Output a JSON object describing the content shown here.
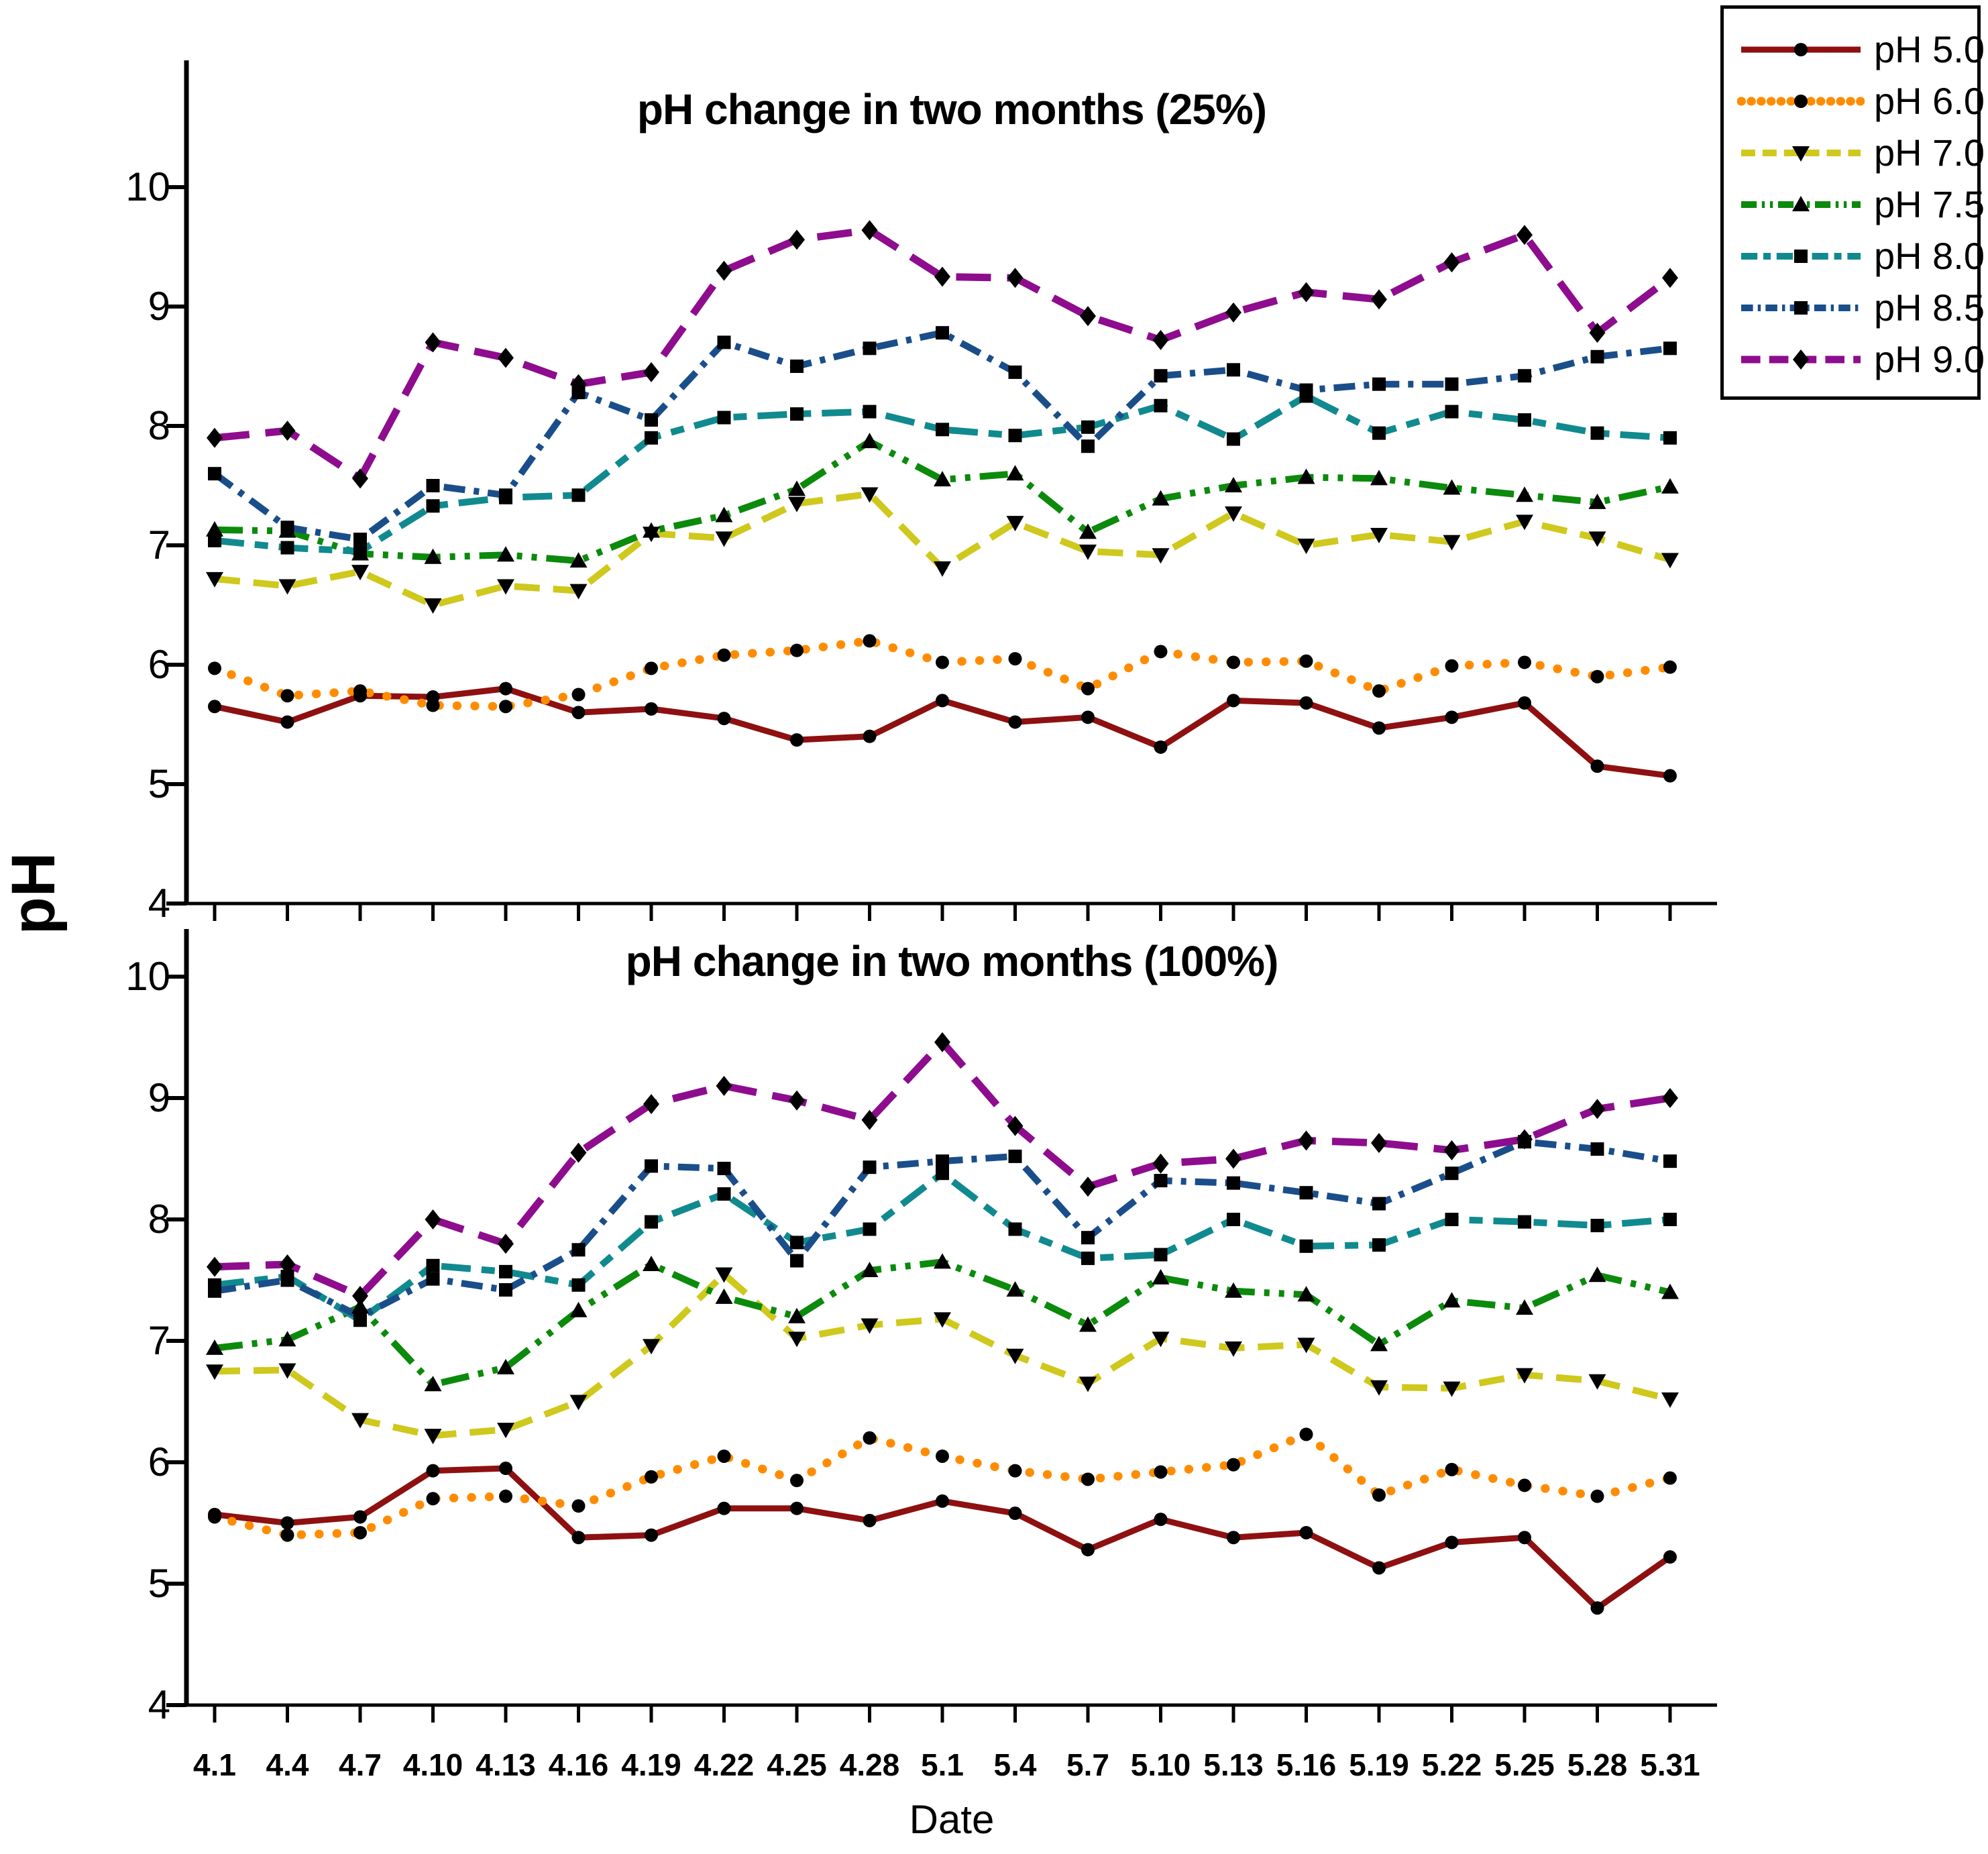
{
  "page_title": "pH change in two months",
  "axes": {
    "y_label": "pH",
    "x_label": "Date",
    "y_ticks": [
      10,
      9,
      8,
      7,
      6,
      5,
      4
    ],
    "ylim": [
      4,
      10
    ]
  },
  "legend": {
    "position": "top-right",
    "items": [
      {
        "label": "pH 5.0",
        "color": "#8e1010",
        "dash": "",
        "width": 9,
        "cap": "butt",
        "marker": "circle"
      },
      {
        "label": "pH 6.0",
        "color": "#ff8c00",
        "dash": "0.5 26",
        "width": 13,
        "cap": "round",
        "marker": "circle"
      },
      {
        "label": "pH 7.0",
        "color": "#cfc81d",
        "dash": "38 20",
        "width": 10,
        "cap": "butt",
        "marker": "triangle-down"
      },
      {
        "label": "pH 7.5",
        "color": "#0b8a0b",
        "dash": "42 14 8 14 8 14",
        "width": 10,
        "cap": "butt",
        "marker": "triangle-up"
      },
      {
        "label": "pH 8.0",
        "color": "#108a8f",
        "dash": "44 16 20 16",
        "width": 10,
        "cap": "butt",
        "marker": "square"
      },
      {
        "label": "pH 8.5",
        "color": "#1a4e8a",
        "dash": "32 13 8 13",
        "width": 10,
        "cap": "butt",
        "marker": "square"
      },
      {
        "label": "pH 9.0",
        "color": "#8e0c8e",
        "dash": "52 24",
        "width": 11,
        "cap": "butt",
        "marker": "diamond"
      }
    ]
  },
  "chart_data": [
    {
      "type": "line",
      "title": "pH change in two months (25%)",
      "xlabel": "Date",
      "ylabel": "pH",
      "ylim": [
        4,
        10
      ],
      "grid": false,
      "categories": [
        "4.1",
        "4.4",
        "4.7",
        "4.10",
        "4.13",
        "4.16",
        "4.19",
        "4.22",
        "4.25",
        "4.28",
        "5.1",
        "5.4",
        "5.7",
        "5.10",
        "5.13",
        "5.16",
        "5.19",
        "5.22",
        "5.25",
        "5.28",
        "5.31"
      ],
      "series": [
        {
          "name": "pH 5.0",
          "values": [
            5.65,
            5.52,
            5.74,
            5.73,
            5.8,
            5.6,
            5.63,
            5.55,
            5.37,
            5.4,
            5.7,
            5.52,
            5.56,
            5.31,
            5.7,
            5.68,
            5.47,
            5.56,
            5.68,
            5.15,
            5.07
          ]
        },
        {
          "name": "pH 6.0",
          "values": [
            5.97,
            5.74,
            5.78,
            5.66,
            5.65,
            5.75,
            5.97,
            6.08,
            6.12,
            6.2,
            6.02,
            6.05,
            5.8,
            6.11,
            6.02,
            6.03,
            5.78,
            5.99,
            6.02,
            5.9,
            5.98
          ]
        },
        {
          "name": "pH 7.0",
          "values": [
            6.72,
            6.66,
            6.78,
            6.5,
            6.66,
            6.62,
            7.1,
            7.06,
            7.35,
            7.43,
            6.81,
            7.19,
            6.95,
            6.92,
            7.27,
            7.0,
            7.09,
            7.03,
            7.2,
            7.06,
            6.88
          ]
        },
        {
          "name": "pH 7.5",
          "values": [
            7.13,
            7.12,
            6.93,
            6.9,
            6.92,
            6.87,
            7.12,
            7.25,
            7.47,
            7.87,
            7.55,
            7.6,
            7.11,
            7.39,
            7.5,
            7.57,
            7.56,
            7.48,
            7.42,
            7.36,
            7.49
          ]
        },
        {
          "name": "pH 8.0",
          "values": [
            7.04,
            6.98,
            6.95,
            7.33,
            7.4,
            7.42,
            7.9,
            8.07,
            8.1,
            8.12,
            7.97,
            7.92,
            7.99,
            8.17,
            7.89,
            8.25,
            7.94,
            8.12,
            8.05,
            7.94,
            7.9
          ]
        },
        {
          "name": "pH 8.5",
          "values": [
            7.6,
            7.15,
            7.05,
            7.5,
            7.42,
            8.28,
            8.05,
            8.7,
            8.5,
            8.65,
            8.78,
            8.45,
            7.83,
            8.42,
            8.47,
            8.3,
            8.35,
            8.35,
            8.42,
            8.58,
            8.65
          ]
        },
        {
          "name": "pH 9.0",
          "values": [
            7.9,
            7.96,
            7.56,
            8.7,
            8.57,
            8.35,
            8.45,
            9.3,
            9.56,
            9.64,
            9.25,
            9.24,
            8.92,
            8.72,
            8.95,
            9.12,
            9.06,
            9.37,
            9.6,
            8.78,
            9.24
          ]
        }
      ]
    },
    {
      "type": "line",
      "title": "pH change in two months (100%)",
      "xlabel": "Date",
      "ylabel": "pH",
      "ylim": [
        4,
        10
      ],
      "grid": false,
      "categories": [
        "4.1",
        "4.4",
        "4.7",
        "4.10",
        "4.13",
        "4.16",
        "4.19",
        "4.22",
        "4.25",
        "4.28",
        "5.1",
        "5.4",
        "5.7",
        "5.10",
        "5.13",
        "5.16",
        "5.19",
        "5.22",
        "5.25",
        "5.28",
        "5.31"
      ],
      "series": [
        {
          "name": "pH 5.0",
          "values": [
            5.57,
            5.5,
            5.55,
            5.93,
            5.95,
            5.38,
            5.4,
            5.62,
            5.62,
            5.52,
            5.68,
            5.58,
            5.28,
            5.53,
            5.38,
            5.42,
            5.13,
            5.34,
            5.38,
            4.8,
            5.22
          ]
        },
        {
          "name": "pH 6.0",
          "values": [
            5.55,
            5.4,
            5.42,
            5.7,
            5.72,
            5.64,
            5.88,
            6.05,
            5.85,
            6.2,
            6.05,
            5.93,
            5.86,
            5.92,
            5.98,
            6.23,
            5.73,
            5.94,
            5.81,
            5.72,
            5.87
          ]
        },
        {
          "name": "pH 7.0",
          "values": [
            6.75,
            6.76,
            6.35,
            6.22,
            6.27,
            6.5,
            6.96,
            7.55,
            7.02,
            7.13,
            7.18,
            6.88,
            6.65,
            7.02,
            6.94,
            6.97,
            6.62,
            6.61,
            6.72,
            6.67,
            6.52
          ]
        },
        {
          "name": "pH 7.5",
          "values": [
            6.94,
            7.01,
            7.28,
            6.64,
            6.78,
            7.25,
            7.63,
            7.36,
            7.2,
            7.58,
            7.65,
            7.42,
            7.13,
            7.52,
            7.41,
            7.38,
            6.97,
            7.33,
            7.27,
            7.54,
            7.4
          ]
        },
        {
          "name": "pH 8.0",
          "values": [
            7.46,
            7.53,
            7.17,
            7.62,
            7.57,
            7.46,
            7.98,
            8.21,
            7.81,
            7.92,
            8.38,
            7.92,
            7.68,
            7.71,
            8.0,
            7.78,
            7.79,
            8.0,
            7.98,
            7.95,
            8.0
          ]
        },
        {
          "name": "pH 8.5",
          "values": [
            7.41,
            7.5,
            7.2,
            7.51,
            7.42,
            7.75,
            8.44,
            8.42,
            7.66,
            8.43,
            8.48,
            8.52,
            7.85,
            8.32,
            8.3,
            8.22,
            8.13,
            8.38,
            8.64,
            8.58,
            8.48
          ]
        },
        {
          "name": "pH 9.0",
          "values": [
            7.61,
            7.63,
            7.37,
            8.0,
            7.8,
            8.55,
            8.95,
            9.1,
            8.98,
            8.82,
            9.46,
            8.77,
            8.27,
            8.46,
            8.5,
            8.65,
            8.63,
            8.57,
            8.66,
            8.91,
            9.0
          ]
        }
      ]
    }
  ]
}
